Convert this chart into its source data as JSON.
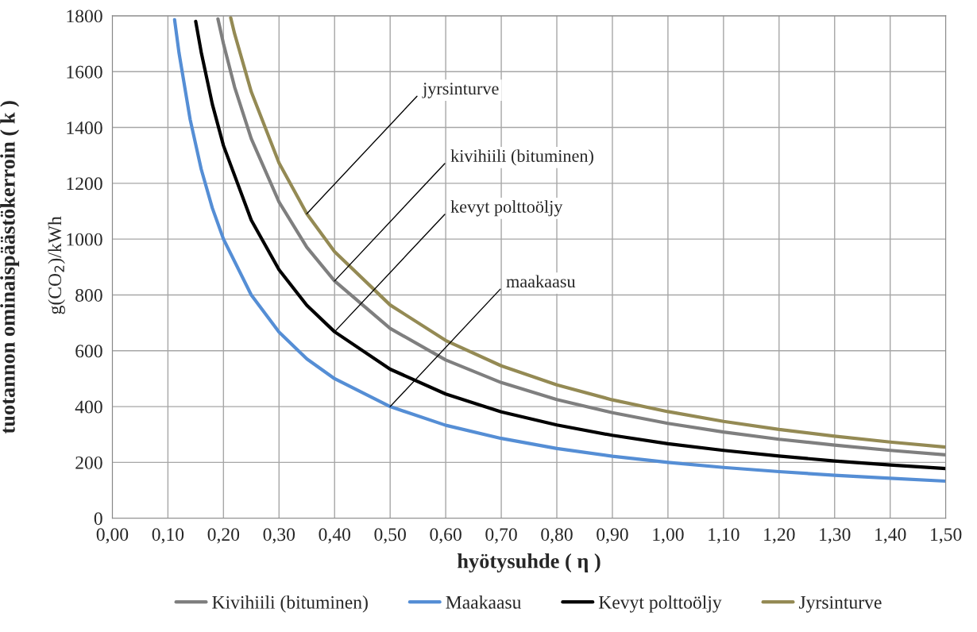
{
  "chart_data": {
    "type": "line",
    "xlabel": "hyötysuhde ( η )",
    "ylabel": "tuotannon ominaispäästökerroin ( k )",
    "xlim": [
      0,
      1.5
    ],
    "ylim": [
      0,
      1800
    ],
    "xticks": [
      {
        "value": 0,
        "label": "0,00"
      },
      {
        "value": 0.1,
        "label": "0,10"
      },
      {
        "value": 0.2,
        "label": "0,20"
      },
      {
        "value": 0.3,
        "label": "0,30"
      },
      {
        "value": 0.4,
        "label": "0,40"
      },
      {
        "value": 0.5,
        "label": "0,50"
      },
      {
        "value": 0.6,
        "label": "0,60"
      },
      {
        "value": 0.7,
        "label": "0,70"
      },
      {
        "value": 0.8,
        "label": "0,80"
      },
      {
        "value": 0.9,
        "label": "0,90"
      },
      {
        "value": 1.0,
        "label": "1,00"
      },
      {
        "value": 1.1,
        "label": "1,10"
      },
      {
        "value": 1.2,
        "label": "1,20"
      },
      {
        "value": 1.3,
        "label": "1,30"
      },
      {
        "value": 1.4,
        "label": "1,40"
      },
      {
        "value": 1.5,
        "label": "1,50"
      }
    ],
    "yticks": [
      0,
      200,
      400,
      600,
      800,
      1000,
      1200,
      1400,
      1600,
      1800
    ],
    "grid": true,
    "legend": "bottom",
    "marker": "none",
    "line_style": "solid",
    "series": [
      {
        "name": "Kivihiili (bituminen)",
        "color": "#7f7f7f",
        "x": [
          0.19,
          0.2,
          0.22,
          0.25,
          0.3,
          0.35,
          0.4,
          0.5,
          0.6,
          0.7,
          0.8,
          0.9,
          1.0,
          1.1,
          1.2,
          1.3,
          1.4,
          1.5
        ],
        "values": [
          1789,
          1700,
          1545,
          1360,
          1133,
          971,
          850,
          680,
          567,
          486,
          425,
          378,
          340,
          309,
          283,
          262,
          243,
          227
        ]
      },
      {
        "name": "Maakaasu",
        "color": "#558ed5",
        "x": [
          0.112,
          0.12,
          0.14,
          0.16,
          0.18,
          0.2,
          0.25,
          0.3,
          0.35,
          0.4,
          0.5,
          0.6,
          0.7,
          0.8,
          0.9,
          1.0,
          1.1,
          1.2,
          1.3,
          1.4,
          1.5
        ],
        "values": [
          1786,
          1667,
          1429,
          1250,
          1111,
          1000,
          800,
          667,
          571,
          500,
          400,
          333,
          286,
          250,
          222,
          200,
          182,
          167,
          154,
          143,
          133
        ]
      },
      {
        "name": "Kevyt polttoöljy",
        "color": "#000000",
        "x": [
          0.15,
          0.16,
          0.18,
          0.2,
          0.25,
          0.3,
          0.35,
          0.4,
          0.5,
          0.6,
          0.7,
          0.8,
          0.9,
          1.0,
          1.1,
          1.2,
          1.3,
          1.4,
          1.5
        ],
        "values": [
          1780,
          1669,
          1483,
          1335,
          1068,
          890,
          763,
          668,
          534,
          445,
          381,
          334,
          297,
          267,
          243,
          223,
          205,
          191,
          178
        ]
      },
      {
        "name": "Jyrsinturve",
        "color": "#948a54",
        "x": [
          0.213,
          0.22,
          0.25,
          0.3,
          0.35,
          0.4,
          0.5,
          0.6,
          0.7,
          0.8,
          0.9,
          1.0,
          1.1,
          1.2,
          1.3,
          1.4,
          1.5
        ],
        "values": [
          1793,
          1736,
          1528,
          1273,
          1091,
          955,
          764,
          637,
          546,
          478,
          424,
          382,
          347,
          318,
          294,
          273,
          255
        ]
      }
    ],
    "annotations": [
      "g(CO$_{2}$)/kWh",
      {
        "text": "jyrsinturve",
        "x": 0.35,
        "y": 1091
      },
      {
        "text": "kivihiili (bituminen)",
        "x": 0.4,
        "y": 850
      },
      {
        "text": "kevyt polttoöljy",
        "x": 0.4,
        "y": 668
      },
      {
        "text": "maakaasu",
        "x": 0.5,
        "y": 400
      }
    ]
  }
}
